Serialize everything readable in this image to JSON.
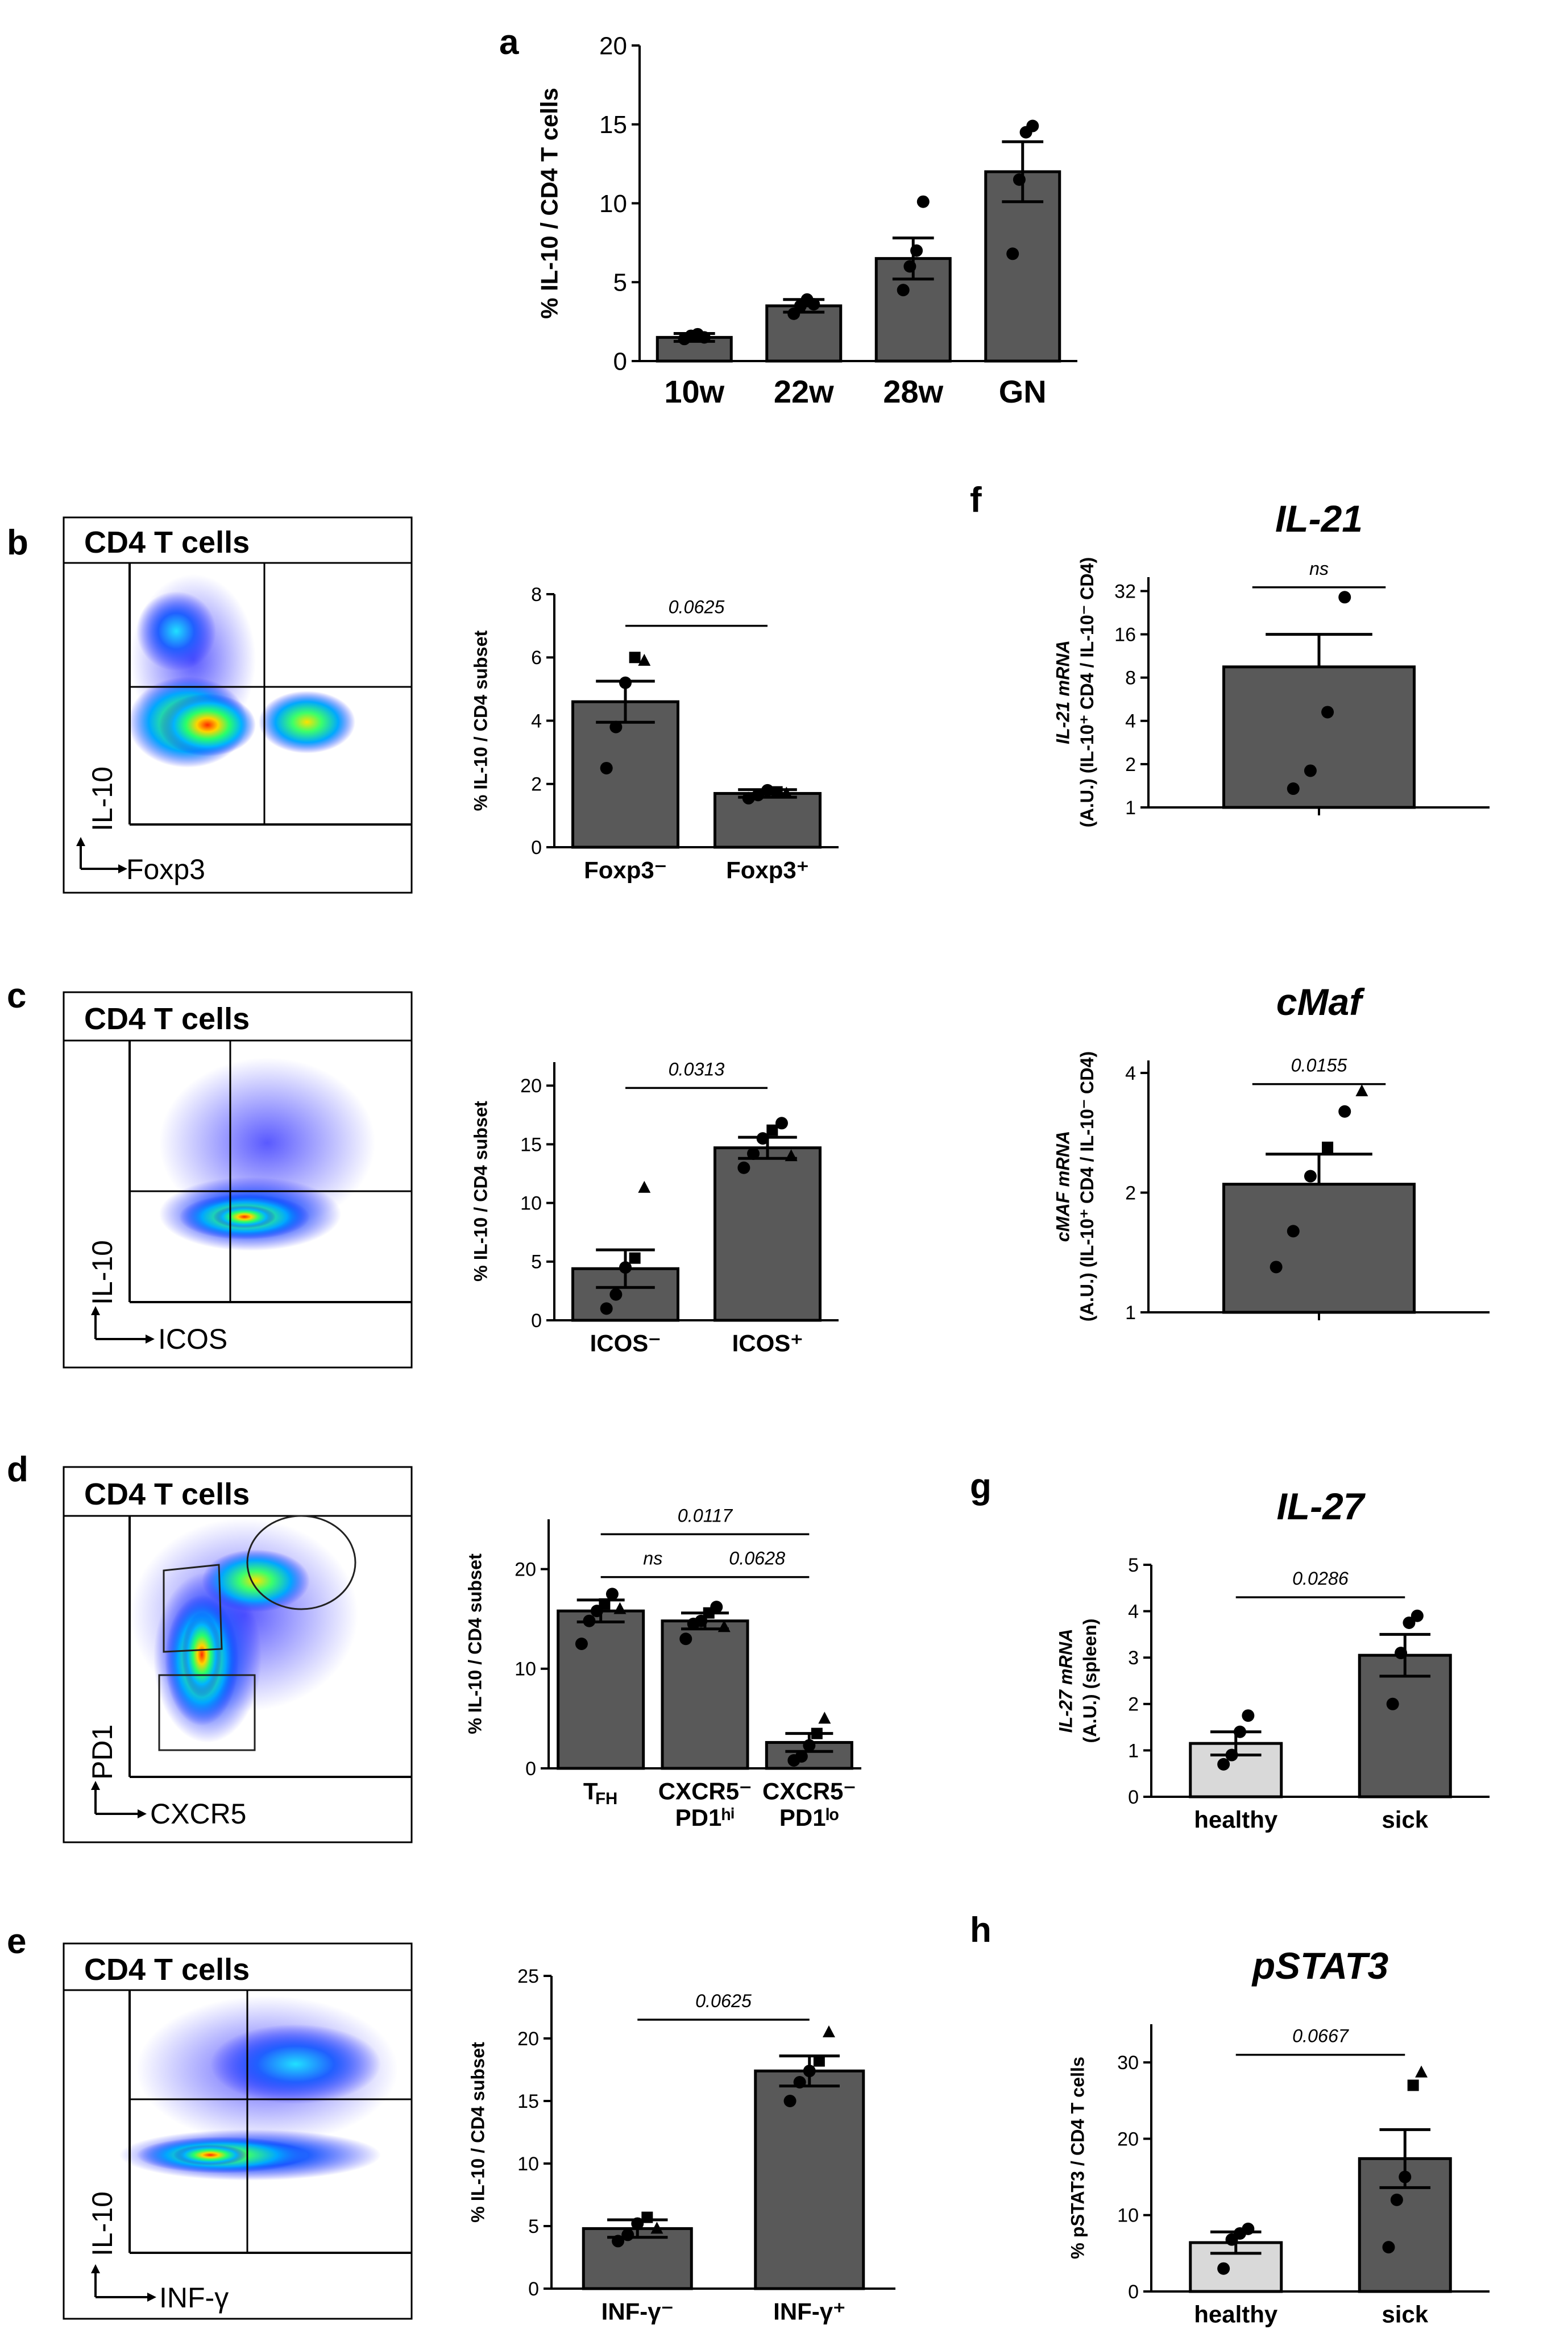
{
  "colors": {
    "bar": "#595959",
    "bar_light": "#d9d9d9",
    "axis": "#000000"
  },
  "flow_plots": [
    {
      "id": "b",
      "title": "CD4 T cells",
      "x_label": "Foxp3",
      "y_label": "IL-10"
    },
    {
      "id": "c",
      "title": "CD4 T cells",
      "x_label": "ICOS",
      "y_label": "IL-10"
    },
    {
      "id": "d",
      "title": "CD4 T cells",
      "x_label": "CXCR5",
      "y_label": "PD1"
    },
    {
      "id": "e",
      "title": "CD4 T cells",
      "x_label": "INF-γ",
      "y_label": "IL-10"
    }
  ],
  "chart_data": [
    {
      "id": "a",
      "panel": "a",
      "type": "bar",
      "title": "",
      "ylabel": "% IL-10 / CD4 T cells",
      "ylim": [
        0,
        20
      ],
      "yticks": [
        0,
        5,
        10,
        15,
        20
      ],
      "categories": [
        "10w",
        "22w",
        "28w",
        "GN"
      ],
      "values": [
        1.5,
        3.5,
        6.5,
        12.0
      ],
      "errors": [
        0.25,
        0.4,
        1.3,
        1.9
      ],
      "points": [
        [
          1.4,
          1.6,
          1.7,
          1.5
        ],
        [
          3.0,
          3.5,
          3.9,
          3.6
        ],
        [
          4.5,
          6.0,
          7.0,
          10.1
        ],
        [
          6.8,
          11.5,
          14.5,
          14.9
        ]
      ],
      "annotations": []
    },
    {
      "id": "b",
      "panel": "b",
      "type": "bar",
      "title": "",
      "ylabel": "% IL-10 / CD4 subset",
      "ylim": [
        0,
        8
      ],
      "yticks": [
        0,
        2,
        4,
        6,
        8
      ],
      "categories": [
        "Foxp3⁻",
        "Foxp3⁺"
      ],
      "values": [
        4.6,
        1.7
      ],
      "errors": [
        0.65,
        0.12
      ],
      "points": [
        [
          2.5,
          3.8,
          5.2,
          6.0,
          5.9
        ],
        [
          1.55,
          1.65,
          1.8,
          1.75,
          1.7
        ]
      ],
      "annotations": [
        {
          "text": "0.0625",
          "from": 0,
          "to": 1,
          "y": 7.0
        }
      ]
    },
    {
      "id": "c",
      "panel": "c",
      "type": "bar",
      "title": "",
      "ylabel": "% IL-10 / CD4 subset",
      "ylim": [
        0,
        22
      ],
      "yticks": [
        0,
        5,
        10,
        15,
        20
      ],
      "categories": [
        "ICOS⁻",
        "ICOS⁺"
      ],
      "values": [
        4.4,
        14.7
      ],
      "errors": [
        1.6,
        0.9
      ],
      "points": [
        [
          1.0,
          2.2,
          4.5,
          5.3,
          11.3
        ],
        [
          13.0,
          14.2,
          15.5,
          16.2,
          16.8,
          14.0
        ]
      ],
      "annotations": [
        {
          "text": "0.0313",
          "from": 0,
          "to": 1,
          "y": 19.8
        }
      ]
    },
    {
      "id": "d",
      "panel": "d",
      "type": "bar",
      "title": "",
      "ylabel": "% IL-10 / CD4 subset",
      "ylim": [
        0,
        25
      ],
      "yticks": [
        0,
        10,
        20
      ],
      "categories": [
        "T_FH",
        "CXCR5⁻ PD1ʰⁱ",
        "CXCR5⁻ PD1ˡᵒ"
      ],
      "values": [
        15.8,
        14.8,
        2.6
      ],
      "errors": [
        1.1,
        0.8,
        0.9
      ],
      "points": [
        [
          12.5,
          14.8,
          15.8,
          16.5,
          17.5,
          16.0
        ],
        [
          13.0,
          14.5,
          14.8,
          15.6,
          16.2,
          14.2
        ],
        [
          0.8,
          1.2,
          2.3,
          3.5,
          5.0
        ]
      ],
      "annotations": [
        {
          "text": "0.0117",
          "from": 0,
          "to": 2,
          "y": 23.5
        },
        {
          "text": "ns",
          "from": 0,
          "to": 1,
          "y": 19.2
        },
        {
          "text": "0.0628",
          "from": 1,
          "to": 2,
          "y": 19.2
        }
      ]
    },
    {
      "id": "e",
      "panel": "e",
      "type": "bar",
      "title": "",
      "ylabel": "% IL-10 / CD4 subset",
      "ylim": [
        0,
        25
      ],
      "yticks": [
        0,
        5,
        10,
        15,
        20,
        25
      ],
      "categories": [
        "INF-γ⁻",
        "INF-γ⁺"
      ],
      "values": [
        4.8,
        17.4
      ],
      "errors": [
        0.7,
        1.2
      ],
      "points": [
        [
          3.8,
          4.3,
          5.2,
          5.7,
          4.8
        ],
        [
          15.0,
          16.5,
          17.4,
          18.2,
          20.5
        ]
      ],
      "annotations": [
        {
          "text": "0.0625",
          "from": 0,
          "to": 1,
          "y": 21.5
        }
      ]
    },
    {
      "id": "f1",
      "panel": "f",
      "type": "bar",
      "title": "IL-21",
      "scale": "log2",
      "ylabel": "IL-21 mRNA (A.U.) (IL-10⁺ CD4 / IL-10⁻ CD4)",
      "ylim": [
        1,
        40
      ],
      "yticks": [
        1,
        2,
        4,
        8,
        16,
        32
      ],
      "ytick_labels": [
        "1",
        "2",
        "4",
        "8",
        "16",
        "32"
      ],
      "categories": [
        ""
      ],
      "values": [
        9.5
      ],
      "errors": [
        6.5
      ],
      "error_upper_only": true,
      "points": [
        [
          1.35,
          1.8,
          4.6,
          29.0
        ]
      ],
      "annotations": [
        {
          "text": "ns",
          "from": 0,
          "to": 0,
          "y": 34.0
        }
      ]
    },
    {
      "id": "f2",
      "panel": "f",
      "type": "bar",
      "title": "cMaf",
      "scale": "log2",
      "ylabel": "cMAF mRNA (A.U.) (IL-10⁺ CD4 / IL-10⁻ CD4)",
      "ylim": [
        1,
        4.3
      ],
      "yticks": [
        1,
        2,
        4
      ],
      "ytick_labels": [
        "1",
        "2",
        "4"
      ],
      "categories": [
        ""
      ],
      "values": [
        2.1
      ],
      "errors": [
        0.4
      ],
      "error_upper_only": true,
      "points": [
        [
          1.3,
          1.6,
          2.2,
          2.6,
          3.2,
          3.6
        ]
      ],
      "annotations": [
        {
          "text": "0.0155",
          "from": 0,
          "to": 0,
          "y": 3.75
        }
      ]
    },
    {
      "id": "g",
      "panel": "g",
      "type": "bar",
      "title": "IL-27",
      "ylabel": "IL-27 mRNA (A.U.) (spleen)",
      "ylim": [
        0,
        5
      ],
      "yticks": [
        0,
        1,
        2,
        3,
        4,
        5
      ],
      "categories": [
        "healthy",
        "sick"
      ],
      "values": [
        1.15,
        3.05
      ],
      "errors": [
        0.25,
        0.45
      ],
      "points": [
        [
          0.7,
          0.9,
          1.4,
          1.75
        ],
        [
          2.0,
          3.1,
          3.75,
          3.9
        ]
      ],
      "light_first": true,
      "annotations": [
        {
          "text": "0.0286",
          "from": 0,
          "to": 1,
          "y": 4.3
        }
      ]
    },
    {
      "id": "h",
      "panel": "h",
      "type": "bar",
      "title": "pSTAT3",
      "ylabel": "% pSTAT3 / CD4 T cells",
      "ylim": [
        0,
        35
      ],
      "yticks": [
        0,
        10,
        20,
        30
      ],
      "categories": [
        "healthy",
        "sick"
      ],
      "values": [
        6.4,
        17.4
      ],
      "errors": [
        1.4,
        3.8
      ],
      "points": [
        [
          3.0,
          6.8,
          7.6,
          8.2
        ],
        [
          5.8,
          12.0,
          15.0,
          27.0,
          28.7
        ]
      ],
      "light_first": true,
      "annotations": [
        {
          "text": "0.0667",
          "from": 0,
          "to": 1,
          "y": 31.0
        }
      ]
    }
  ]
}
